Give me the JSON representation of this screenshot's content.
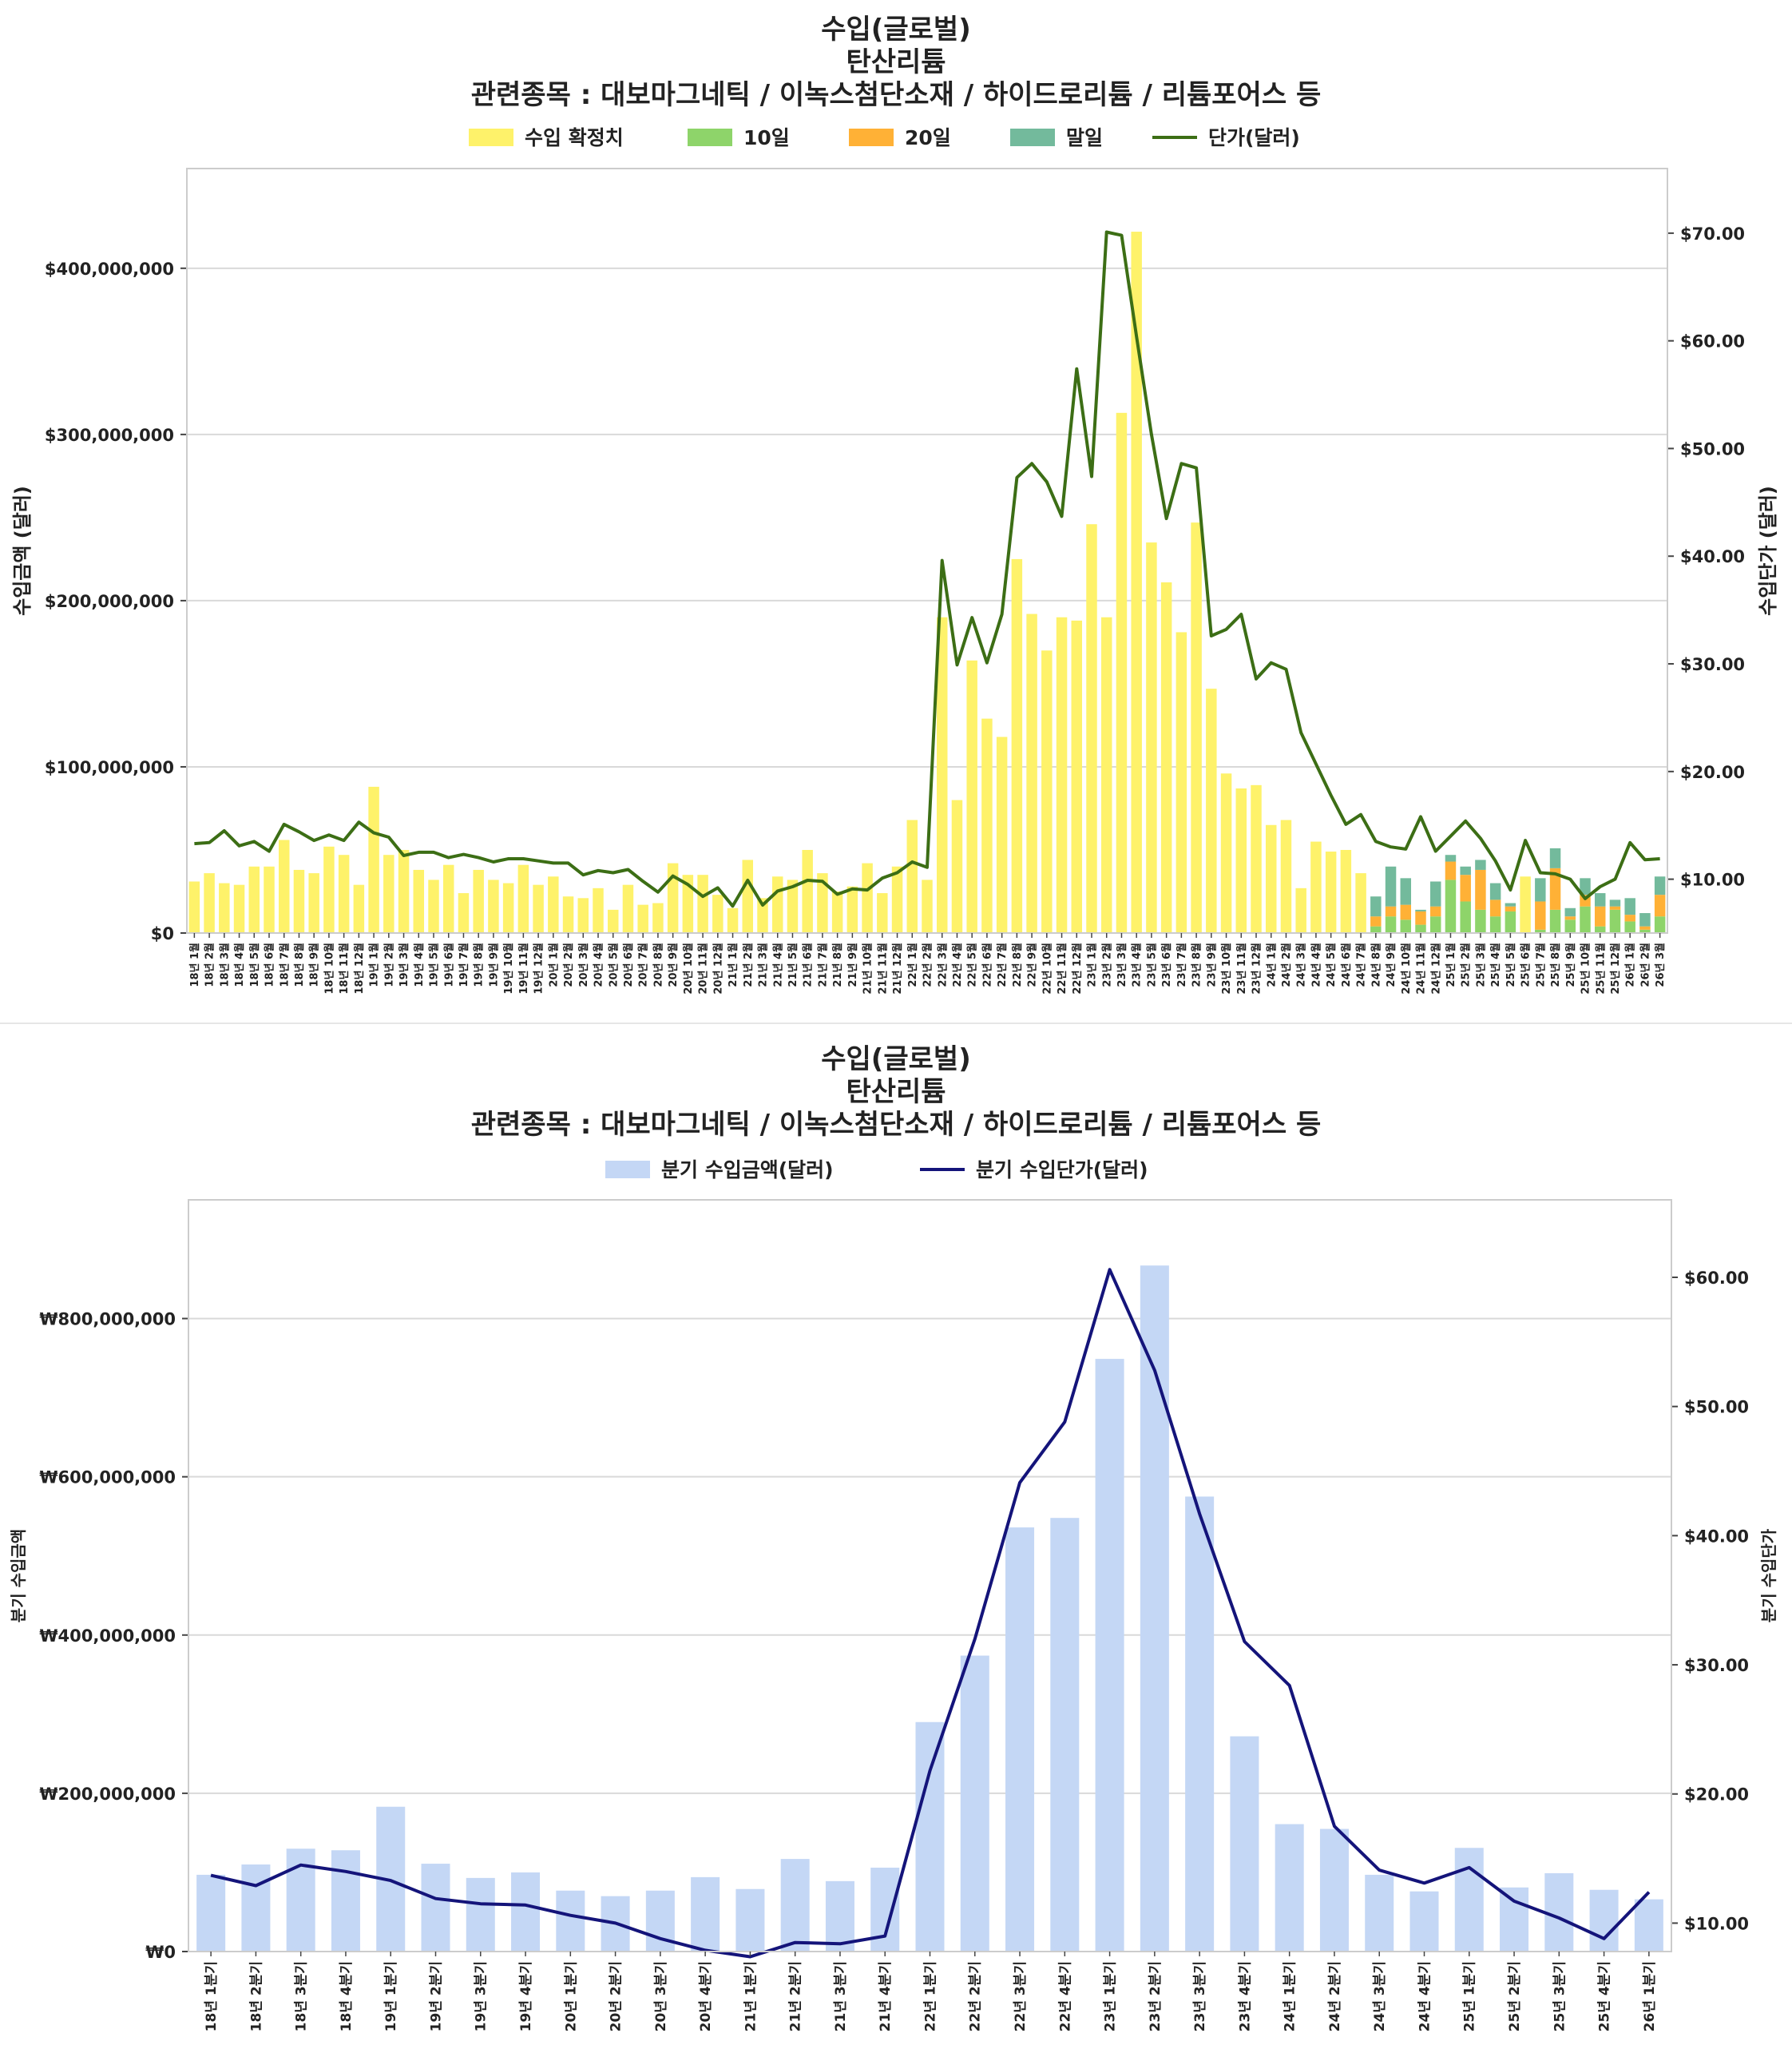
{
  "charts": [
    {
      "title_lines": [
        "수입(글로벌)",
        "탄산리튬",
        "관련종목 : 대보마그네틱 / 이녹스첨단소재 / 하이드로리튬 / 리튬포어스 등"
      ],
      "ylabel_left": "수입금액 (달러)",
      "ylabel_right": "수입단가 (달러)",
      "left_ticks": [
        "$0",
        "$100,000,000",
        "$200,000,000",
        "$300,000,000",
        "$400,000,000"
      ],
      "right_ticks": [
        "$10.00",
        "$20.00",
        "$30.00",
        "$40.00",
        "$50.00",
        "$60.00",
        "$70.00"
      ],
      "legend": [
        {
          "label": "수입 확정치",
          "color": "#fef26a",
          "kind": "bar"
        },
        {
          "label": "10일",
          "color": "#8ed46a",
          "kind": "bar"
        },
        {
          "label": "20일",
          "color": "#ffb136",
          "kind": "bar"
        },
        {
          "label": "말일",
          "color": "#73ba9c",
          "kind": "bar"
        },
        {
          "label": "단가(달러)",
          "color": "#3c6e15",
          "kind": "line"
        }
      ]
    },
    {
      "title_lines": [
        "수입(글로벌)",
        "탄산리튬",
        "관련종목 : 대보마그네틱 / 이녹스첨단소재 / 하이드로리튬 / 리튬포어스 등"
      ],
      "ylabel_left": "분기 수입금액",
      "ylabel_right": "분기 수입단가",
      "left_ticks": [
        "₩0",
        "₩200,000,000",
        "₩400,000,000",
        "₩600,000,000",
        "₩800,000,000"
      ],
      "right_ticks": [
        "$10.00",
        "$20.00",
        "$30.00",
        "$40.00",
        "$50.00",
        "$60.00"
      ],
      "legend": [
        {
          "label": "분기 수입금액(달러)",
          "color": "#c4d7f5",
          "kind": "bar"
        },
        {
          "label": "분기 수입단가(달러)",
          "color": "#14147a",
          "kind": "line"
        }
      ]
    }
  ],
  "chart_data": [
    {
      "type": "bar",
      "stacked": true,
      "title": "수입(글로벌) 탄산리튬 관련종목 : 대보마그네틱 / 이녹스첨단소재 / 하이드로리튬 / 리튬포어스 등",
      "ylabel": "수입금액 (달러)",
      "y2label": "수입단가 (달러)",
      "ylim": [
        0,
        460000000
      ],
      "y2lim": [
        5,
        76
      ],
      "grid": true,
      "legend_position": "top",
      "categories": [
        "18년 1월",
        "18년 2월",
        "18년 3월",
        "18년 4월",
        "18년 5월",
        "18년 6월",
        "18년 7월",
        "18년 8월",
        "18년 9월",
        "18년 10월",
        "18년 11월",
        "18년 12월",
        "19년 1월",
        "19년 2월",
        "19년 3월",
        "19년 4월",
        "19년 5월",
        "19년 6월",
        "19년 7월",
        "19년 8월",
        "19년 9월",
        "19년 10월",
        "19년 11월",
        "19년 12월",
        "20년 1월",
        "20년 2월",
        "20년 3월",
        "20년 4월",
        "20년 5월",
        "20년 6월",
        "20년 7월",
        "20년 8월",
        "20년 9월",
        "20년 10월",
        "20년 11월",
        "20년 12월",
        "21년 1월",
        "21년 2월",
        "21년 3월",
        "21년 4월",
        "21년 5월",
        "21년 6월",
        "21년 7월",
        "21년 8월",
        "21년 9월",
        "21년 10월",
        "21년 11월",
        "21년 12월",
        "22년 1월",
        "22년 2월",
        "22년 3월",
        "22년 4월",
        "22년 5월",
        "22년 6월",
        "22년 7월",
        "22년 8월",
        "22년 9월",
        "22년 10월",
        "22년 11월",
        "22년 12월",
        "23년 1월",
        "23년 2월",
        "23년 3월",
        "23년 4월",
        "23년 5월",
        "23년 6월",
        "23년 7월",
        "23년 8월",
        "23년 9월",
        "23년 10월",
        "23년 11월",
        "23년 12월",
        "24년 1월",
        "24년 2월",
        "24년 3월",
        "24년 4월",
        "24년 5월",
        "24년 6월",
        "24년 7월",
        "24년 8월",
        "24년 9월",
        "24년 10월",
        "24년 11월",
        "24년 12월",
        "25년 1월",
        "25년 2월",
        "25년 3월",
        "25년 4월",
        "25년 5월",
        "25년 6월",
        "25년 7월",
        "25년 8월",
        "25년 9월",
        "25년 10월",
        "25년 11월",
        "25년 12월",
        "26년 1월",
        "26년 2월",
        "26년 3월"
      ],
      "series": [
        {
          "name": "수입 확정치",
          "color": "#fef26a",
          "values": [
            31000000,
            36000000,
            30000000,
            29000000,
            40000000,
            40000000,
            56000000,
            38000000,
            36000000,
            52000000,
            47000000,
            29000000,
            88000000,
            47000000,
            50000000,
            38000000,
            32000000,
            41000000,
            24000000,
            38000000,
            32000000,
            30000000,
            41000000,
            29000000,
            34000000,
            22000000,
            21000000,
            27000000,
            14000000,
            29000000,
            17000000,
            18000000,
            42000000,
            35000000,
            35000000,
            23000000,
            15000000,
            44000000,
            21000000,
            34000000,
            32000000,
            50000000,
            36000000,
            25000000,
            28000000,
            42000000,
            24000000,
            40000000,
            68000000,
            32000000,
            190000000,
            80000000,
            164000000,
            129000000,
            118000000,
            225000000,
            192000000,
            170000000,
            190000000,
            188000000,
            246000000,
            190000000,
            313000000,
            422000000,
            235000000,
            211000000,
            181000000,
            247000000,
            147000000,
            96000000,
            87000000,
            89000000,
            65000000,
            68000000,
            27000000,
            55000000,
            49000000,
            50000000,
            36000000,
            0,
            0,
            0,
            0,
            0,
            0,
            0,
            0,
            0,
            0,
            34000000,
            0,
            0,
            0,
            0,
            0,
            0,
            0,
            0,
            0
          ]
        },
        {
          "name": "10일",
          "color": "#8ed46a",
          "values": [
            0,
            0,
            0,
            0,
            0,
            0,
            0,
            0,
            0,
            0,
            0,
            0,
            0,
            0,
            0,
            0,
            0,
            0,
            0,
            0,
            0,
            0,
            0,
            0,
            0,
            0,
            0,
            0,
            0,
            0,
            0,
            0,
            0,
            0,
            0,
            0,
            0,
            0,
            0,
            0,
            0,
            0,
            0,
            0,
            0,
            0,
            0,
            0,
            0,
            0,
            0,
            0,
            0,
            0,
            0,
            0,
            0,
            0,
            0,
            0,
            0,
            0,
            0,
            0,
            0,
            0,
            0,
            0,
            0,
            0,
            0,
            0,
            0,
            0,
            0,
            0,
            0,
            0,
            0,
            4000000,
            10000000,
            8000000,
            5000000,
            10000000,
            32000000,
            19000000,
            14000000,
            10000000,
            13000000,
            0,
            2000000,
            14000000,
            8000000,
            16000000,
            4000000,
            14000000,
            7000000,
            2000000,
            10000000
          ]
        },
        {
          "name": "20일",
          "color": "#ffb136",
          "values": [
            0,
            0,
            0,
            0,
            0,
            0,
            0,
            0,
            0,
            0,
            0,
            0,
            0,
            0,
            0,
            0,
            0,
            0,
            0,
            0,
            0,
            0,
            0,
            0,
            0,
            0,
            0,
            0,
            0,
            0,
            0,
            0,
            0,
            0,
            0,
            0,
            0,
            0,
            0,
            0,
            0,
            0,
            0,
            0,
            0,
            0,
            0,
            0,
            0,
            0,
            0,
            0,
            0,
            0,
            0,
            0,
            0,
            0,
            0,
            0,
            0,
            0,
            0,
            0,
            0,
            0,
            0,
            0,
            0,
            0,
            0,
            0,
            0,
            0,
            0,
            0,
            0,
            0,
            0,
            6000000,
            6000000,
            9000000,
            8000000,
            6000000,
            11000000,
            16000000,
            24000000,
            10000000,
            3000000,
            0,
            17000000,
            25000000,
            2000000,
            7000000,
            12000000,
            2000000,
            4000000,
            2000000,
            13000000
          ]
        },
        {
          "name": "말일",
          "color": "#73ba9c",
          "values": [
            0,
            0,
            0,
            0,
            0,
            0,
            0,
            0,
            0,
            0,
            0,
            0,
            0,
            0,
            0,
            0,
            0,
            0,
            0,
            0,
            0,
            0,
            0,
            0,
            0,
            0,
            0,
            0,
            0,
            0,
            0,
            0,
            0,
            0,
            0,
            0,
            0,
            0,
            0,
            0,
            0,
            0,
            0,
            0,
            0,
            0,
            0,
            0,
            0,
            0,
            0,
            0,
            0,
            0,
            0,
            0,
            0,
            0,
            0,
            0,
            0,
            0,
            0,
            0,
            0,
            0,
            0,
            0,
            0,
            0,
            0,
            0,
            0,
            0,
            0,
            0,
            0,
            0,
            0,
            12000000,
            24000000,
            16000000,
            1000000,
            15000000,
            4000000,
            5000000,
            6000000,
            10000000,
            2000000,
            0,
            14000000,
            12000000,
            5000000,
            10000000,
            8000000,
            4000000,
            10000000,
            8000000,
            11000000
          ]
        }
      ],
      "line": {
        "name": "단가(달러)",
        "color": "#3c6e15",
        "values": [
          13.3,
          13.4,
          14.5,
          13.1,
          13.5,
          12.6,
          15.1,
          14.4,
          13.6,
          14.1,
          13.6,
          15.3,
          14.3,
          13.9,
          12.2,
          12.5,
          12.5,
          12.0,
          12.3,
          12.0,
          11.6,
          11.9,
          11.9,
          11.7,
          11.5,
          11.5,
          10.4,
          10.8,
          10.6,
          10.9,
          9.8,
          8.8,
          10.3,
          9.5,
          8.4,
          9.2,
          7.5,
          9.9,
          7.6,
          8.9,
          9.3,
          9.9,
          9.8,
          8.6,
          9.1,
          9.0,
          10.1,
          10.6,
          11.6,
          11.1,
          39.6,
          29.9,
          34.3,
          30.1,
          34.6,
          47.3,
          48.6,
          46.9,
          43.7,
          57.4,
          47.4,
          70.1,
          69.8,
          60.4,
          51.3,
          43.5,
          48.6,
          48.2,
          32.6,
          33.2,
          34.6,
          28.6,
          30.1,
          29.5,
          23.6,
          20.7,
          17.8,
          15.1,
          16.0,
          13.5,
          13.0,
          12.8,
          15.8,
          12.6,
          14.0,
          15.4,
          13.8,
          11.7,
          9.0,
          13.6,
          10.6,
          10.5,
          10.0,
          8.2,
          9.3,
          10.0,
          13.4,
          11.8,
          11.9
        ]
      }
    },
    {
      "type": "bar",
      "title": "수입(글로벌) 탄산리튬 관련종목 : 대보마그네틱 / 이녹스첨단소재 / 하이드로리튬 / 리튬포어스 등",
      "ylabel": "분기 수입금액",
      "y2label": "분기 수입단가",
      "ylim": [
        0,
        950000000
      ],
      "y2lim": [
        7.8,
        66
      ],
      "grid": true,
      "legend_position": "top",
      "categories": [
        "18년 1분기",
        "18년 2분기",
        "18년 3분기",
        "18년 4분기",
        "19년 1분기",
        "19년 2분기",
        "19년 3분기",
        "19년 4분기",
        "20년 1분기",
        "20년 2분기",
        "20년 3분기",
        "20년 4분기",
        "21년 1분기",
        "21년 2분기",
        "21년 3분기",
        "21년 4분기",
        "22년 1분기",
        "22년 2분기",
        "22년 3분기",
        "22년 4분기",
        "23년 1분기",
        "23년 2분기",
        "23년 3분기",
        "23년 4분기",
        "24년 1분기",
        "24년 2분기",
        "24년 3분기",
        "24년 4분기",
        "25년 1분기",
        "25년 2분기",
        "25년 3분기",
        "25년 4분기",
        "26년 1분기"
      ],
      "series": [
        {
          "name": "분기 수입금액(달러)",
          "color": "#c4d7f5",
          "values": [
            97000000,
            110000000,
            130000000,
            128000000,
            183000000,
            111000000,
            93000000,
            100000000,
            77000000,
            70000000,
            77000000,
            94000000,
            79000000,
            117000000,
            89000000,
            106000000,
            290000000,
            374000000,
            536000000,
            548000000,
            749000000,
            867000000,
            575000000,
            272000000,
            161000000,
            155000000,
            97000000,
            76000000,
            131000000,
            81000000,
            99000000,
            78000000,
            66000000
          ]
        }
      ],
      "line": {
        "name": "분기 수입단가(달러)",
        "color": "#14147a",
        "values": [
          13.7,
          12.9,
          14.5,
          14.0,
          13.3,
          11.9,
          11.5,
          11.4,
          10.6,
          10.0,
          8.8,
          7.9,
          7.4,
          8.5,
          8.4,
          9.0,
          21.8,
          32.0,
          44.1,
          48.8,
          60.6,
          52.8,
          41.7,
          31.8,
          28.4,
          17.5,
          14.1,
          13.1,
          14.3,
          11.7,
          10.4,
          8.8,
          12.4
        ]
      }
    }
  ]
}
